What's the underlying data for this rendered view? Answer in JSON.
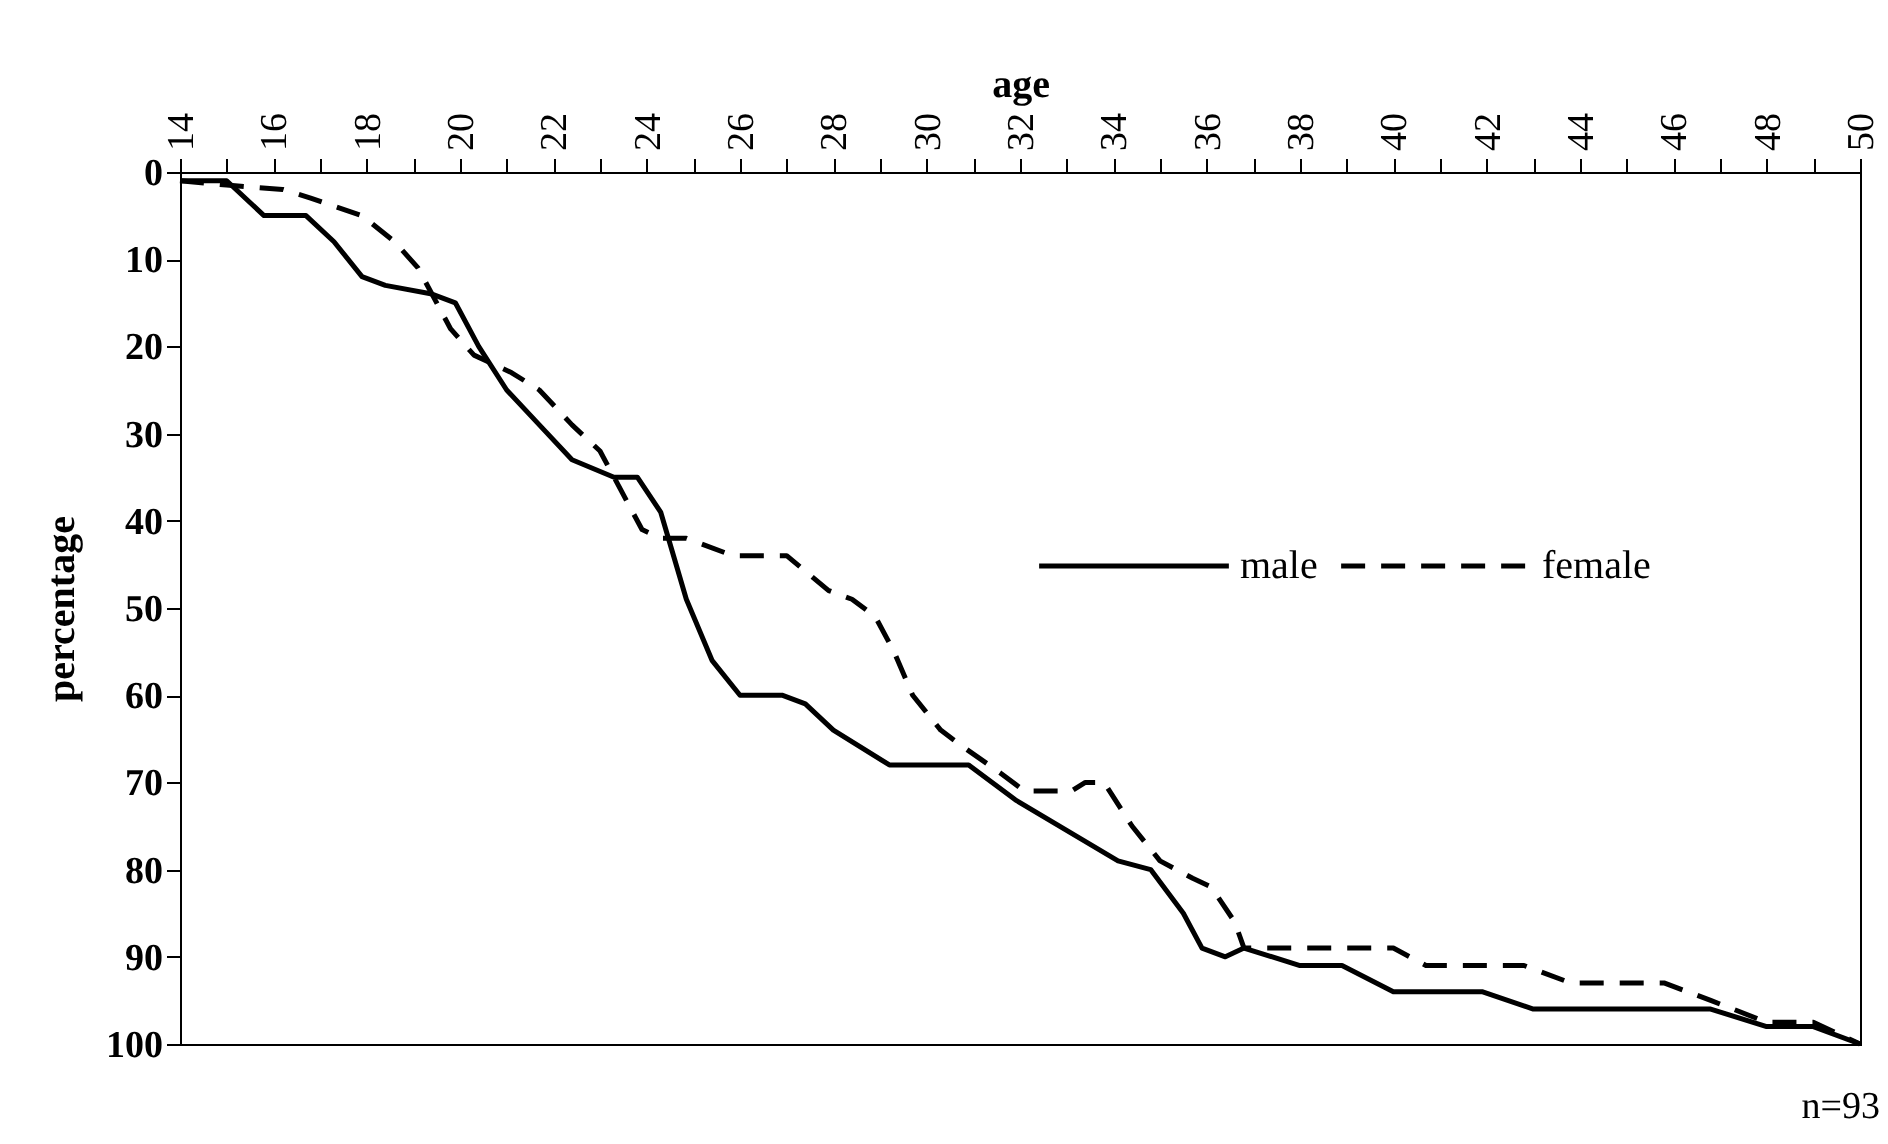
{
  "chart_data": {
    "type": "line",
    "xlabel": "age",
    "ylabel": "percentage",
    "annotations": [
      "n=93"
    ],
    "xlim": [
      14,
      50
    ],
    "ylim": [
      100,
      0
    ],
    "xticks": [
      14,
      {
        "value": 15,
        "label": null
      },
      16,
      {
        "value": 17,
        "label": null
      },
      18,
      {
        "value": 19,
        "label": null
      },
      20,
      {
        "value": 21,
        "label": null
      },
      22,
      {
        "value": 23,
        "label": null
      },
      24,
      {
        "value": 25,
        "label": null
      },
      26,
      {
        "value": 27,
        "label": null
      },
      28,
      {
        "value": 29,
        "label": null
      },
      30,
      {
        "value": 31,
        "label": null
      },
      32,
      {
        "value": 33,
        "label": null
      },
      34,
      {
        "value": 35,
        "label": null
      },
      36,
      {
        "value": 37,
        "label": null
      },
      38,
      {
        "value": 39,
        "label": null
      },
      40,
      {
        "value": 41,
        "label": null
      },
      42,
      {
        "value": 43,
        "label": null
      },
      44,
      {
        "value": 45,
        "label": null
      },
      46,
      {
        "value": 47,
        "label": null
      },
      48,
      {
        "value": 49,
        "label": null
      },
      50
    ],
    "yticks": [
      0,
      10,
      20,
      30,
      40,
      50,
      60,
      70,
      80,
      90,
      100
    ],
    "grid": false,
    "legend": "right",
    "marker": "none",
    "series": [
      {
        "name": "male",
        "color": "#000000",
        "line_style": "solid",
        "x": [
          14,
          15,
          15.8,
          16.4,
          16.7,
          17.3,
          17.9,
          18.4,
          19.4,
          19.9,
          20.4,
          21,
          21.7,
          22.4,
          23.3,
          23.8,
          24.3,
          24.85,
          25.4,
          26,
          26.4,
          26.9,
          27.4,
          28,
          29.2,
          29.9,
          30.9,
          31.9,
          34.1,
          34.8,
          35.5,
          35.9,
          36.4,
          36.8,
          38,
          38.9,
          40,
          41.9,
          43,
          46.8,
          48,
          49,
          50
        ],
        "values": [
          1,
          1,
          5,
          5,
          5,
          8,
          12,
          13,
          14,
          15,
          20,
          25,
          29,
          33,
          35,
          35,
          39,
          49,
          56,
          60,
          60,
          60,
          61,
          64,
          68,
          68,
          68,
          72,
          79,
          80,
          85,
          89,
          90,
          89,
          91,
          91,
          94,
          94,
          96,
          96,
          98,
          98,
          100
        ]
      },
      {
        "name": "female",
        "color": "#000000",
        "line_style": "dashed",
        "x": [
          14,
          15,
          16.2,
          16.8,
          17.9,
          18.6,
          19.1,
          19.6,
          19.8,
          20.3,
          21.1,
          21.7,
          22.4,
          23,
          23.4,
          23.9,
          24.3,
          24.85,
          25.85,
          27,
          27.9,
          28.4,
          28.9,
          29.3,
          29.7,
          30.3,
          30.8,
          31.6,
          32.1,
          33.1,
          33.4,
          33.8,
          34.4,
          35,
          35.7,
          36.1,
          36.6,
          36.8,
          37.5,
          40,
          40.7,
          42.8,
          43.8,
          45.8,
          46.8,
          48,
          49,
          50
        ],
        "values": [
          1,
          1.5,
          2,
          3,
          5,
          8,
          11,
          16,
          18,
          21,
          23,
          25,
          29,
          32,
          36,
          41,
          42,
          42,
          44,
          44,
          48,
          49,
          51,
          55,
          60,
          64,
          66,
          69,
          71,
          71,
          70,
          70,
          75,
          79,
          81,
          82,
          86,
          89,
          89,
          89,
          91,
          91,
          93,
          93,
          95,
          97.5,
          97.5,
          100
        ]
      }
    ]
  }
}
